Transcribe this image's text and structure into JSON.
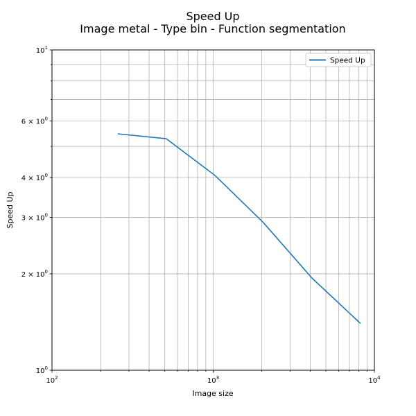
{
  "chart_data": {
    "type": "line",
    "title": "Speed Up",
    "subtitle": "Image metal - Type bin - Function segmentation",
    "xlabel": "Image size",
    "ylabel": "Speed Up",
    "xscale": "log",
    "yscale": "log",
    "xlim": [
      100,
      10000
    ],
    "ylim": [
      1,
      10
    ],
    "grid": true,
    "legend_placement": "top-right",
    "x_ticks": [
      {
        "value": 100,
        "base": "10",
        "exp": "2"
      },
      {
        "value": 1000,
        "base": "10",
        "exp": "3"
      },
      {
        "value": 10000,
        "base": "10",
        "exp": "4"
      }
    ],
    "y_ticks": [
      {
        "value": 1,
        "base": "10",
        "exp": "0"
      },
      {
        "value": 2,
        "base": "2 × 10",
        "exp": "0"
      },
      {
        "value": 3,
        "base": "3 × 10",
        "exp": "0"
      },
      {
        "value": 4,
        "base": "4 × 10",
        "exp": "0"
      },
      {
        "value": 6,
        "base": "6 × 10",
        "exp": "0"
      },
      {
        "value": 10,
        "base": "10",
        "exp": "1"
      }
    ],
    "series": [
      {
        "name": "Speed Up",
        "color": "#1f77b4",
        "x": [
          256,
          512,
          1024,
          2048,
          4096,
          8192
        ],
        "y": [
          5.47,
          5.28,
          4.06,
          2.89,
          1.94,
          1.4
        ]
      }
    ]
  }
}
